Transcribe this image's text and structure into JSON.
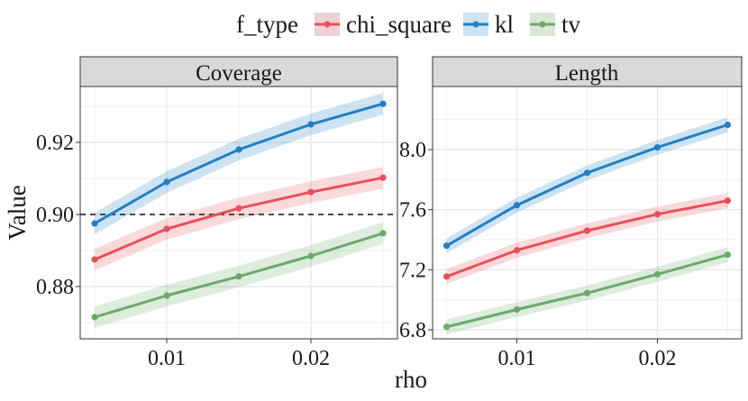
{
  "legend": {
    "title": "f_type",
    "entries": [
      {
        "key": "chi_square",
        "label": "chi_square",
        "color": "#E8505B"
      },
      {
        "key": "kl",
        "label": "kl",
        "color": "#2180C3"
      },
      {
        "key": "tv",
        "label": "tv",
        "color": "#6BAA6A"
      }
    ]
  },
  "chart_data": [
    {
      "type": "line",
      "title": "Coverage",
      "xlabel": "rho",
      "ylabel": "Value",
      "x": [
        0.005,
        0.01,
        0.015,
        0.02,
        0.025
      ],
      "xticks": [
        0.01,
        0.02
      ],
      "xtick_labels": [
        "0.01",
        "0.02"
      ],
      "xlim": [
        0.004,
        0.026
      ],
      "ylim": [
        0.8655,
        0.9355
      ],
      "yticks": [
        0.88,
        0.9,
        0.92
      ],
      "ytick_labels": [
        "0.88",
        "0.90",
        "0.92"
      ],
      "hline": 0.9,
      "series": [
        {
          "name": "chi_square",
          "values": [
            0.8875,
            0.896,
            0.9017,
            0.9062,
            0.9102
          ],
          "lower": [
            0.8845,
            0.893,
            0.8987,
            0.9032,
            0.9072
          ],
          "upper": [
            0.8905,
            0.899,
            0.9047,
            0.9092,
            0.9132
          ]
        },
        {
          "name": "kl",
          "values": [
            0.8975,
            0.909,
            0.918,
            0.925,
            0.9307
          ],
          "lower": [
            0.8945,
            0.906,
            0.915,
            0.922,
            0.9277
          ],
          "upper": [
            0.9005,
            0.912,
            0.921,
            0.928,
            0.9337
          ]
        },
        {
          "name": "tv",
          "values": [
            0.8715,
            0.8775,
            0.8828,
            0.8885,
            0.8948
          ],
          "lower": [
            0.8685,
            0.8745,
            0.8798,
            0.8855,
            0.8918
          ],
          "upper": [
            0.8745,
            0.8805,
            0.8858,
            0.8915,
            0.8978
          ]
        }
      ]
    },
    {
      "type": "line",
      "title": "Length",
      "xlabel": "rho",
      "ylabel": "Value",
      "x": [
        0.005,
        0.01,
        0.015,
        0.02,
        0.025
      ],
      "xticks": [
        0.01,
        0.02
      ],
      "xtick_labels": [
        "0.01",
        "0.02"
      ],
      "xlim": [
        0.004,
        0.026
      ],
      "ylim": [
        6.74,
        8.42
      ],
      "yticks": [
        6.8,
        7.2,
        7.6,
        8.0
      ],
      "ytick_labels": [
        "6.8",
        "7.2",
        "7.6",
        "8.0"
      ],
      "series": [
        {
          "name": "chi_square",
          "values": [
            7.155,
            7.33,
            7.46,
            7.57,
            7.66
          ],
          "lower": [
            7.105,
            7.28,
            7.41,
            7.52,
            7.61
          ],
          "upper": [
            7.205,
            7.38,
            7.51,
            7.62,
            7.71
          ]
        },
        {
          "name": "kl",
          "values": [
            7.36,
            7.63,
            7.845,
            8.015,
            8.165
          ],
          "lower": [
            7.31,
            7.58,
            7.795,
            7.965,
            8.115
          ],
          "upper": [
            7.41,
            7.68,
            7.895,
            8.065,
            8.215
          ]
        },
        {
          "name": "tv",
          "values": [
            6.82,
            6.935,
            7.045,
            7.17,
            7.3
          ],
          "lower": [
            6.77,
            6.885,
            6.995,
            7.12,
            7.25
          ],
          "upper": [
            6.87,
            6.985,
            7.095,
            7.22,
            7.35
          ]
        }
      ]
    }
  ]
}
